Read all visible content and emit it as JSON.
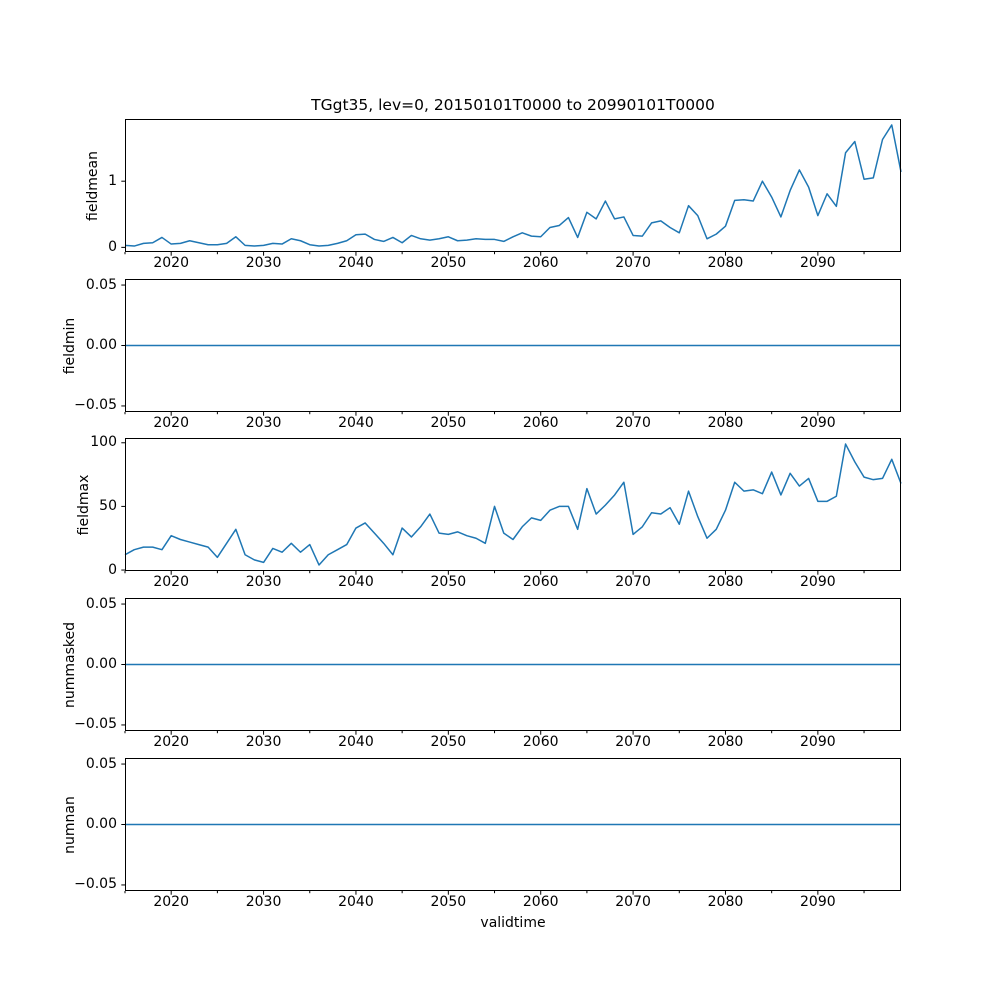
{
  "figure": {
    "title": "TGgt35, lev=0, 20150101T0000 to 20990101T0000",
    "xlabel": "validtime",
    "line_color": "#1f77b4",
    "axes_color": "#000000",
    "background_color": "#ffffff",
    "xticks_major": [
      2020,
      2030,
      2040,
      2050,
      2060,
      2070,
      2080,
      2090
    ],
    "xtick_labels": [
      "2020",
      "2030",
      "2040",
      "2050",
      "2060",
      "2070",
      "2080",
      "2090"
    ],
    "xticks_minor": [
      2015,
      2025,
      2035,
      2045,
      2055,
      2065,
      2075,
      2085,
      2095
    ]
  },
  "chart_data": [
    {
      "type": "line",
      "name": "fieldmean",
      "ylabel": "fieldmean",
      "xlim": [
        2015,
        2099
      ],
      "ylim": [
        -0.07,
        1.94
      ],
      "yticks": [
        0,
        1
      ],
      "ytick_labels": [
        "0",
        "1"
      ],
      "grid": false,
      "x_start": 2015,
      "x_step": 1,
      "x_count": 85,
      "values": [
        0.03,
        0.02,
        0.06,
        0.07,
        0.15,
        0.05,
        0.06,
        0.1,
        0.07,
        0.04,
        0.04,
        0.06,
        0.16,
        0.03,
        0.02,
        0.03,
        0.06,
        0.05,
        0.13,
        0.1,
        0.04,
        0.02,
        0.03,
        0.06,
        0.1,
        0.19,
        0.2,
        0.12,
        0.09,
        0.15,
        0.07,
        0.18,
        0.13,
        0.11,
        0.13,
        0.16,
        0.1,
        0.11,
        0.13,
        0.12,
        0.12,
        0.09,
        0.16,
        0.22,
        0.17,
        0.16,
        0.3,
        0.33,
        0.45,
        0.15,
        0.53,
        0.43,
        0.7,
        0.43,
        0.46,
        0.18,
        0.17,
        0.37,
        0.4,
        0.3,
        0.22,
        0.63,
        0.48,
        0.13,
        0.2,
        0.32,
        0.71,
        0.72,
        0.7,
        1.0,
        0.76,
        0.46,
        0.86,
        1.17,
        0.91,
        0.48,
        0.81,
        0.62,
        1.43,
        1.6,
        1.03,
        1.05,
        1.63,
        1.85,
        1.14
      ]
    },
    {
      "type": "line",
      "name": "fieldmin",
      "ylabel": "fieldmin",
      "xlim": [
        2015,
        2099
      ],
      "ylim": [
        -0.055,
        0.055
      ],
      "yticks": [
        -0.05,
        0.0,
        0.05
      ],
      "ytick_labels": [
        "−0.05",
        "0.00",
        "0.05"
      ],
      "grid": false,
      "x_start": 2015,
      "x_step": 1,
      "x_count": 85,
      "constant_value": 0.0
    },
    {
      "type": "line",
      "name": "fieldmax",
      "ylabel": "fieldmax",
      "xlim": [
        2015,
        2099
      ],
      "ylim": [
        -0.75,
        103.75
      ],
      "yticks": [
        0,
        50,
        100
      ],
      "ytick_labels": [
        "0",
        "50",
        "100"
      ],
      "grid": false,
      "x_start": 2015,
      "x_step": 1,
      "x_count": 85,
      "values": [
        12,
        16,
        18,
        18,
        16,
        27,
        24,
        22,
        20,
        18,
        10,
        21,
        32,
        12,
        8,
        6,
        17,
        14,
        21,
        14,
        20,
        4,
        12,
        16,
        20,
        33,
        37,
        29,
        21,
        12,
        33,
        26,
        34,
        44,
        29,
        28,
        30,
        27,
        25,
        21,
        50,
        29,
        24,
        34,
        41,
        39,
        47,
        50,
        50,
        32,
        64,
        44,
        51,
        59,
        69,
        28,
        34,
        45,
        44,
        49,
        36,
        62,
        42,
        25,
        32,
        47,
        69,
        62,
        63,
        60,
        77,
        59,
        76,
        66,
        72,
        54,
        54,
        58,
        99,
        85,
        73,
        71,
        72,
        87,
        68
      ]
    },
    {
      "type": "line",
      "name": "nummasked",
      "ylabel": "nummasked",
      "xlim": [
        2015,
        2099
      ],
      "ylim": [
        -0.055,
        0.055
      ],
      "yticks": [
        -0.05,
        0.0,
        0.05
      ],
      "ytick_labels": [
        "−0.05",
        "0.00",
        "0.05"
      ],
      "grid": false,
      "x_start": 2015,
      "x_step": 1,
      "x_count": 85,
      "constant_value": 0.0
    },
    {
      "type": "line",
      "name": "numnan",
      "ylabel": "numnan",
      "xlim": [
        2015,
        2099
      ],
      "ylim": [
        -0.055,
        0.055
      ],
      "yticks": [
        -0.05,
        0.0,
        0.05
      ],
      "ytick_labels": [
        "−0.05",
        "0.00",
        "0.05"
      ],
      "grid": false,
      "x_start": 2015,
      "x_step": 1,
      "x_count": 85,
      "constant_value": 0.0
    }
  ]
}
